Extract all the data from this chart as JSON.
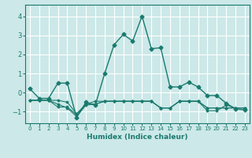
{
  "xlabel": "Humidex (Indice chaleur)",
  "bg_color": "#cce8e8",
  "grid_color": "#ffffff",
  "line_color": "#1a7a6e",
  "xlim": [
    -0.5,
    23.5
  ],
  "ylim": [
    -1.6,
    4.6
  ],
  "yticks": [
    -1,
    0,
    1,
    2,
    3,
    4
  ],
  "xticks": [
    0,
    1,
    2,
    3,
    4,
    5,
    6,
    7,
    8,
    9,
    10,
    11,
    12,
    13,
    14,
    15,
    16,
    17,
    18,
    19,
    20,
    21,
    22,
    23
  ],
  "series1_x": [
    0,
    1,
    2,
    3,
    4,
    5,
    6,
    7,
    8,
    9,
    10,
    11,
    12,
    13,
    14,
    15,
    16,
    17,
    18,
    19,
    20,
    21,
    22,
    23
  ],
  "series1_y": [
    0.2,
    -0.3,
    -0.3,
    0.5,
    0.5,
    -1.3,
    -0.5,
    -0.65,
    1.0,
    2.5,
    3.05,
    2.7,
    4.0,
    2.3,
    2.35,
    0.3,
    0.3,
    0.55,
    0.3,
    -0.15,
    -0.15,
    -0.55,
    -0.85,
    -0.9
  ],
  "series2_x": [
    0,
    1,
    2,
    3,
    4,
    5,
    6,
    7,
    8,
    9,
    10,
    11,
    12,
    13,
    14,
    15,
    16,
    17,
    18,
    19,
    20,
    21,
    22,
    23
  ],
  "series2_y": [
    -0.4,
    -0.4,
    -0.4,
    -0.4,
    -0.5,
    -1.1,
    -0.6,
    -0.6,
    -0.45,
    -0.45,
    -0.45,
    -0.45,
    -0.45,
    -0.45,
    -0.8,
    -0.8,
    -0.45,
    -0.45,
    -0.45,
    -0.8,
    -0.8,
    -0.8,
    -0.8,
    -0.8
  ],
  "series3_x": [
    0,
    1,
    2,
    3,
    4,
    5,
    6,
    7,
    8,
    9,
    10,
    11,
    12,
    13,
    14,
    15,
    16,
    17,
    18,
    19,
    20,
    21,
    22,
    23
  ],
  "series3_y": [
    -0.4,
    -0.4,
    -0.4,
    -0.75,
    -0.75,
    -1.15,
    -0.6,
    -0.45,
    -0.45,
    -0.45,
    -0.45,
    -0.45,
    -0.45,
    -0.45,
    -0.8,
    -0.8,
    -0.45,
    -0.45,
    -0.45,
    -0.95,
    -0.95,
    -0.65,
    -0.8,
    -0.8
  ],
  "series4_x": [
    0,
    1,
    2,
    3,
    4,
    5,
    6,
    7,
    8,
    9,
    10,
    11,
    12,
    13,
    14,
    15,
    16,
    17,
    18,
    19,
    20,
    21,
    22,
    23
  ],
  "series4_y": [
    -0.4,
    -0.4,
    -0.4,
    -0.6,
    -0.8,
    -1.25,
    -0.65,
    -0.6,
    -0.45,
    -0.45,
    -0.45,
    -0.45,
    -0.45,
    -0.45,
    -0.8,
    -0.8,
    -0.45,
    -0.45,
    -0.45,
    -0.8,
    -0.8,
    -0.8,
    -0.8,
    -0.8
  ]
}
